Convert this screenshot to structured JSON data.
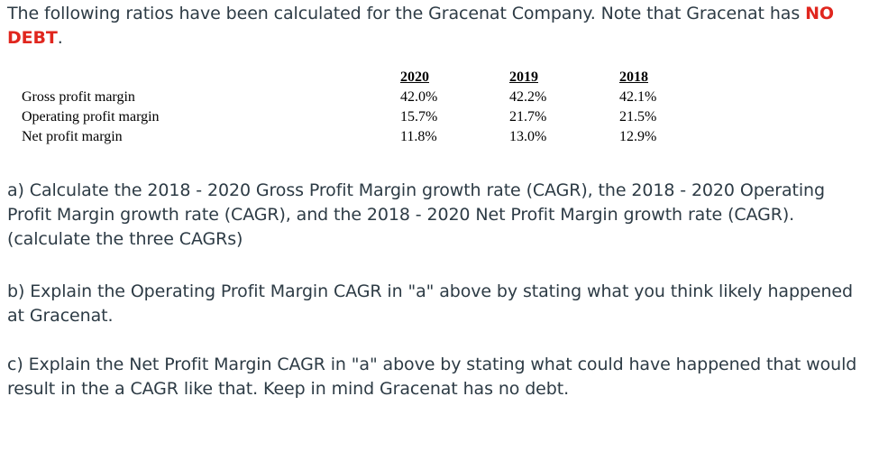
{
  "intro": {
    "text_before": "The following ratios have been calculated for the Gracenat Company. Note that Gracenat has ",
    "emphasis": "NO DEBT",
    "text_after": "."
  },
  "table": {
    "headers": [
      "2020",
      "2019",
      "2018"
    ],
    "rows": [
      {
        "label": "Gross profit margin",
        "values": [
          "42.0%",
          "42.2%",
          "42.1%"
        ]
      },
      {
        "label": "Operating profit margin",
        "values": [
          "15.7%",
          "21.7%",
          "21.5%"
        ]
      },
      {
        "label": "Net profit margin",
        "values": [
          "11.8%",
          "13.0%",
          "12.9%"
        ]
      }
    ]
  },
  "questions": {
    "a": "a)  Calculate the 2018 - 2020 Gross Profit Margin growth rate (CAGR), the 2018 - 2020 Operating Profit Margin growth rate (CAGR), and the 2018 - 2020 Net Profit Margin growth rate (CAGR).  (calculate the three CAGRs)",
    "b": "b)  Explain the Operating Profit Margin CAGR in \"a\" above by stating what you think likely happened at Gracenat.",
    "c": "c)  Explain the Net Profit Margin CAGR in \"a\" above by stating what could have happened that would result in the a CAGR like that.  Keep in mind Gracenat has no debt."
  },
  "colors": {
    "text": "#2d3b45",
    "emphasis": "#e0261e",
    "table_text": "#000000"
  }
}
